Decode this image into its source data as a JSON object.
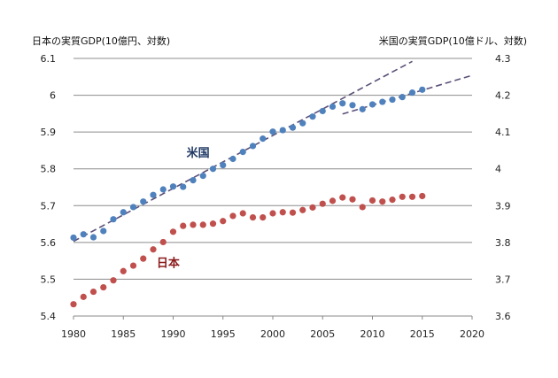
{
  "chart_data": {
    "type": "scatter",
    "left_axis_title": "日本の実質GDP(10億円、対数)",
    "right_axis_title": "米国の実質GDP(10億ドル、対数)",
    "xlim": [
      1980,
      2020
    ],
    "x_ticks": [
      1980,
      1985,
      1990,
      1995,
      2000,
      2005,
      2010,
      2015,
      2020
    ],
    "left_ylim": [
      5.4,
      6.1
    ],
    "left_ticks": [
      "5.4",
      "5.5",
      "5.6",
      "5.7",
      "5.8",
      "5.9",
      "6",
      "6.1"
    ],
    "right_ylim": [
      3.6,
      4.3
    ],
    "right_ticks": [
      "3.6",
      "3.7",
      "3.8",
      "3.9",
      "4",
      "4.1",
      "4.2",
      "4.3"
    ],
    "grid": true,
    "series": [
      {
        "name": "日本",
        "axis": "left",
        "color": "#c0504d",
        "x": [
          1980,
          1981,
          1982,
          1983,
          1984,
          1985,
          1986,
          1987,
          1988,
          1989,
          1990,
          1991,
          1992,
          1993,
          1994,
          1995,
          1996,
          1997,
          1998,
          1999,
          2000,
          2001,
          2002,
          2003,
          2004,
          2005,
          2006,
          2007,
          2008,
          2009,
          2010,
          2011,
          2012,
          2013,
          2014,
          2015
        ],
        "values": [
          5.432,
          5.452,
          5.466,
          5.478,
          5.497,
          5.522,
          5.537,
          5.556,
          5.581,
          5.601,
          5.629,
          5.645,
          5.648,
          5.648,
          5.651,
          5.658,
          5.672,
          5.679,
          5.668,
          5.668,
          5.679,
          5.682,
          5.681,
          5.688,
          5.695,
          5.705,
          5.713,
          5.722,
          5.717,
          5.696,
          5.714,
          5.711,
          5.716,
          5.724,
          5.724,
          5.726
        ]
      },
      {
        "name": "米国",
        "axis": "right",
        "color": "#4f81bd",
        "x": [
          1980,
          1981,
          1982,
          1983,
          1984,
          1985,
          1986,
          1987,
          1988,
          1989,
          1990,
          1991,
          1992,
          1993,
          1994,
          1995,
          1996,
          1997,
          1998,
          1999,
          2000,
          2001,
          2002,
          2003,
          2004,
          2005,
          2006,
          2007,
          2008,
          2009,
          2010,
          2011,
          2012,
          2013,
          2014,
          2015
        ],
        "values": [
          3.813,
          3.822,
          3.814,
          3.831,
          3.863,
          3.882,
          3.896,
          3.911,
          3.929,
          3.944,
          3.952,
          3.951,
          3.969,
          3.981,
          4.0,
          4.01,
          4.027,
          4.046,
          4.062,
          4.082,
          4.101,
          4.105,
          4.112,
          4.124,
          4.142,
          4.157,
          4.169,
          4.178,
          4.173,
          4.162,
          4.175,
          4.182,
          4.188,
          4.195,
          4.207,
          4.215
        ]
      }
    ],
    "trend_lines": [
      {
        "name": "米国 trend 1980-2014",
        "axis": "right",
        "x": [
          1980,
          2014
        ],
        "values": [
          3.803,
          4.292
        ]
      },
      {
        "name": "米国 trend 2007-2020",
        "axis": "right",
        "x": [
          2007,
          2020
        ],
        "values": [
          4.149,
          4.254
        ]
      }
    ],
    "annotations": [
      {
        "text": "米国",
        "color": "#1f3864",
        "x": 1992.5,
        "y_right": 4.045
      },
      {
        "text": "日本",
        "color": "#8b1a1a",
        "x": 1989.5,
        "y_left": 5.545
      }
    ]
  }
}
